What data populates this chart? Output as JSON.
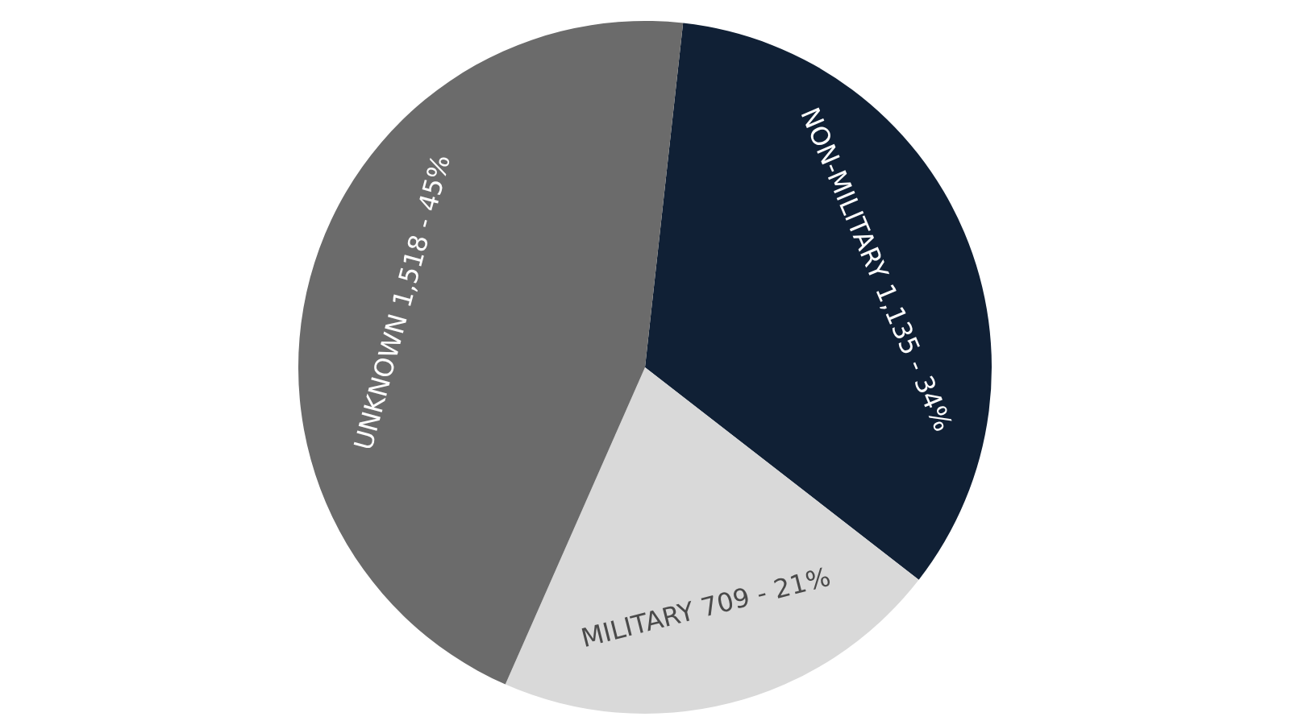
{
  "chart_data": {
    "type": "pie",
    "categories": [
      "NON-MILITARY",
      "MILITARY",
      "UNKNOWN"
    ],
    "values": [
      1135,
      709,
      1518
    ],
    "value_labels": [
      "1,135 - 34%",
      "709 - 21%",
      "1,518 - 45%"
    ],
    "colors": [
      "#102035",
      "#d9d9d9",
      "#6b6b6b"
    ]
  }
}
